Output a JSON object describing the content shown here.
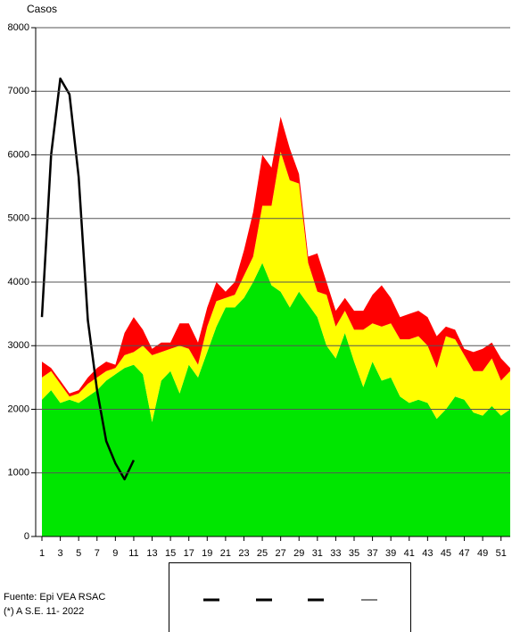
{
  "chart_data": {
    "type": "area",
    "y_label": "Casos",
    "x": [
      1,
      2,
      3,
      4,
      5,
      6,
      7,
      8,
      9,
      10,
      11,
      12,
      13,
      14,
      15,
      16,
      17,
      18,
      19,
      20,
      21,
      22,
      23,
      24,
      25,
      26,
      27,
      28,
      29,
      30,
      31,
      32,
      33,
      34,
      35,
      36,
      37,
      38,
      39,
      40,
      41,
      42,
      43,
      44,
      45,
      46,
      47,
      48,
      49,
      50,
      51,
      52
    ],
    "xlim": [
      1,
      52
    ],
    "xticks": [
      1,
      3,
      5,
      7,
      9,
      11,
      13,
      15,
      17,
      19,
      21,
      23,
      25,
      27,
      29,
      31,
      33,
      35,
      37,
      39,
      41,
      43,
      45,
      47,
      49,
      51
    ],
    "ylim": [
      0,
      8000
    ],
    "yticks": [
      0,
      1000,
      2000,
      3000,
      4000,
      5000,
      6000,
      7000,
      8000
    ],
    "grid": true,
    "series": [
      {
        "type": "area",
        "color": "#00e600",
        "values": [
          2150,
          2300,
          2100,
          2150,
          2100,
          2200,
          2300,
          2450,
          2550,
          2650,
          2700,
          2550,
          1800,
          2450,
          2600,
          2250,
          2700,
          2500,
          2900,
          3300,
          3600,
          3600,
          3750,
          4000,
          4300,
          3950,
          3850,
          3600,
          3850,
          3650,
          3450,
          3000,
          2800,
          3200,
          2750,
          2350,
          2750,
          2450,
          2500,
          2200,
          2100,
          2150,
          2100,
          1850,
          2000,
          2200,
          2150,
          1950,
          1900,
          2050,
          1900,
          2000
        ]
      },
      {
        "type": "area",
        "color": "#ffff00",
        "values": [
          350,
          300,
          300,
          50,
          150,
          200,
          200,
          150,
          100,
          200,
          200,
          450,
          1050,
          450,
          350,
          750,
          250,
          200,
          400,
          400,
          150,
          200,
          350,
          400,
          900,
          1250,
          2200,
          2000,
          1700,
          650,
          400,
          800,
          500,
          350,
          500,
          900,
          600,
          850,
          850,
          900,
          1000,
          1000,
          900,
          800,
          1150,
          900,
          700,
          650,
          700,
          750,
          550,
          600
        ]
      },
      {
        "type": "area",
        "color": "#ff0000",
        "values": [
          250,
          50,
          50,
          50,
          50,
          100,
          150,
          150,
          50,
          350,
          550,
          250,
          100,
          150,
          100,
          350,
          400,
          350,
          300,
          300,
          100,
          200,
          400,
          700,
          800,
          600,
          550,
          500,
          150,
          100,
          600,
          200,
          250,
          200,
          300,
          300,
          450,
          650,
          400,
          350,
          400,
          400,
          450,
          500,
          150,
          150,
          100,
          300,
          350,
          250,
          350,
          50
        ]
      },
      {
        "type": "line",
        "color": "#000000",
        "values": [
          3450,
          6000,
          7200,
          6950,
          5650,
          3400,
          2300,
          1500,
          1150,
          900,
          1200,
          null,
          null,
          null,
          null,
          null,
          null,
          null,
          null,
          null,
          null,
          null,
          null,
          null,
          null,
          null,
          null,
          null,
          null,
          null,
          null,
          null,
          null,
          null,
          null,
          null,
          null,
          null,
          null,
          null,
          null,
          null,
          null,
          null,
          null,
          null,
          null,
          null,
          null,
          null,
          null,
          null
        ]
      }
    ],
    "source": "Fuente: Epi VEA RSAC",
    "note": "(*) A S.E. 11- 2022"
  }
}
